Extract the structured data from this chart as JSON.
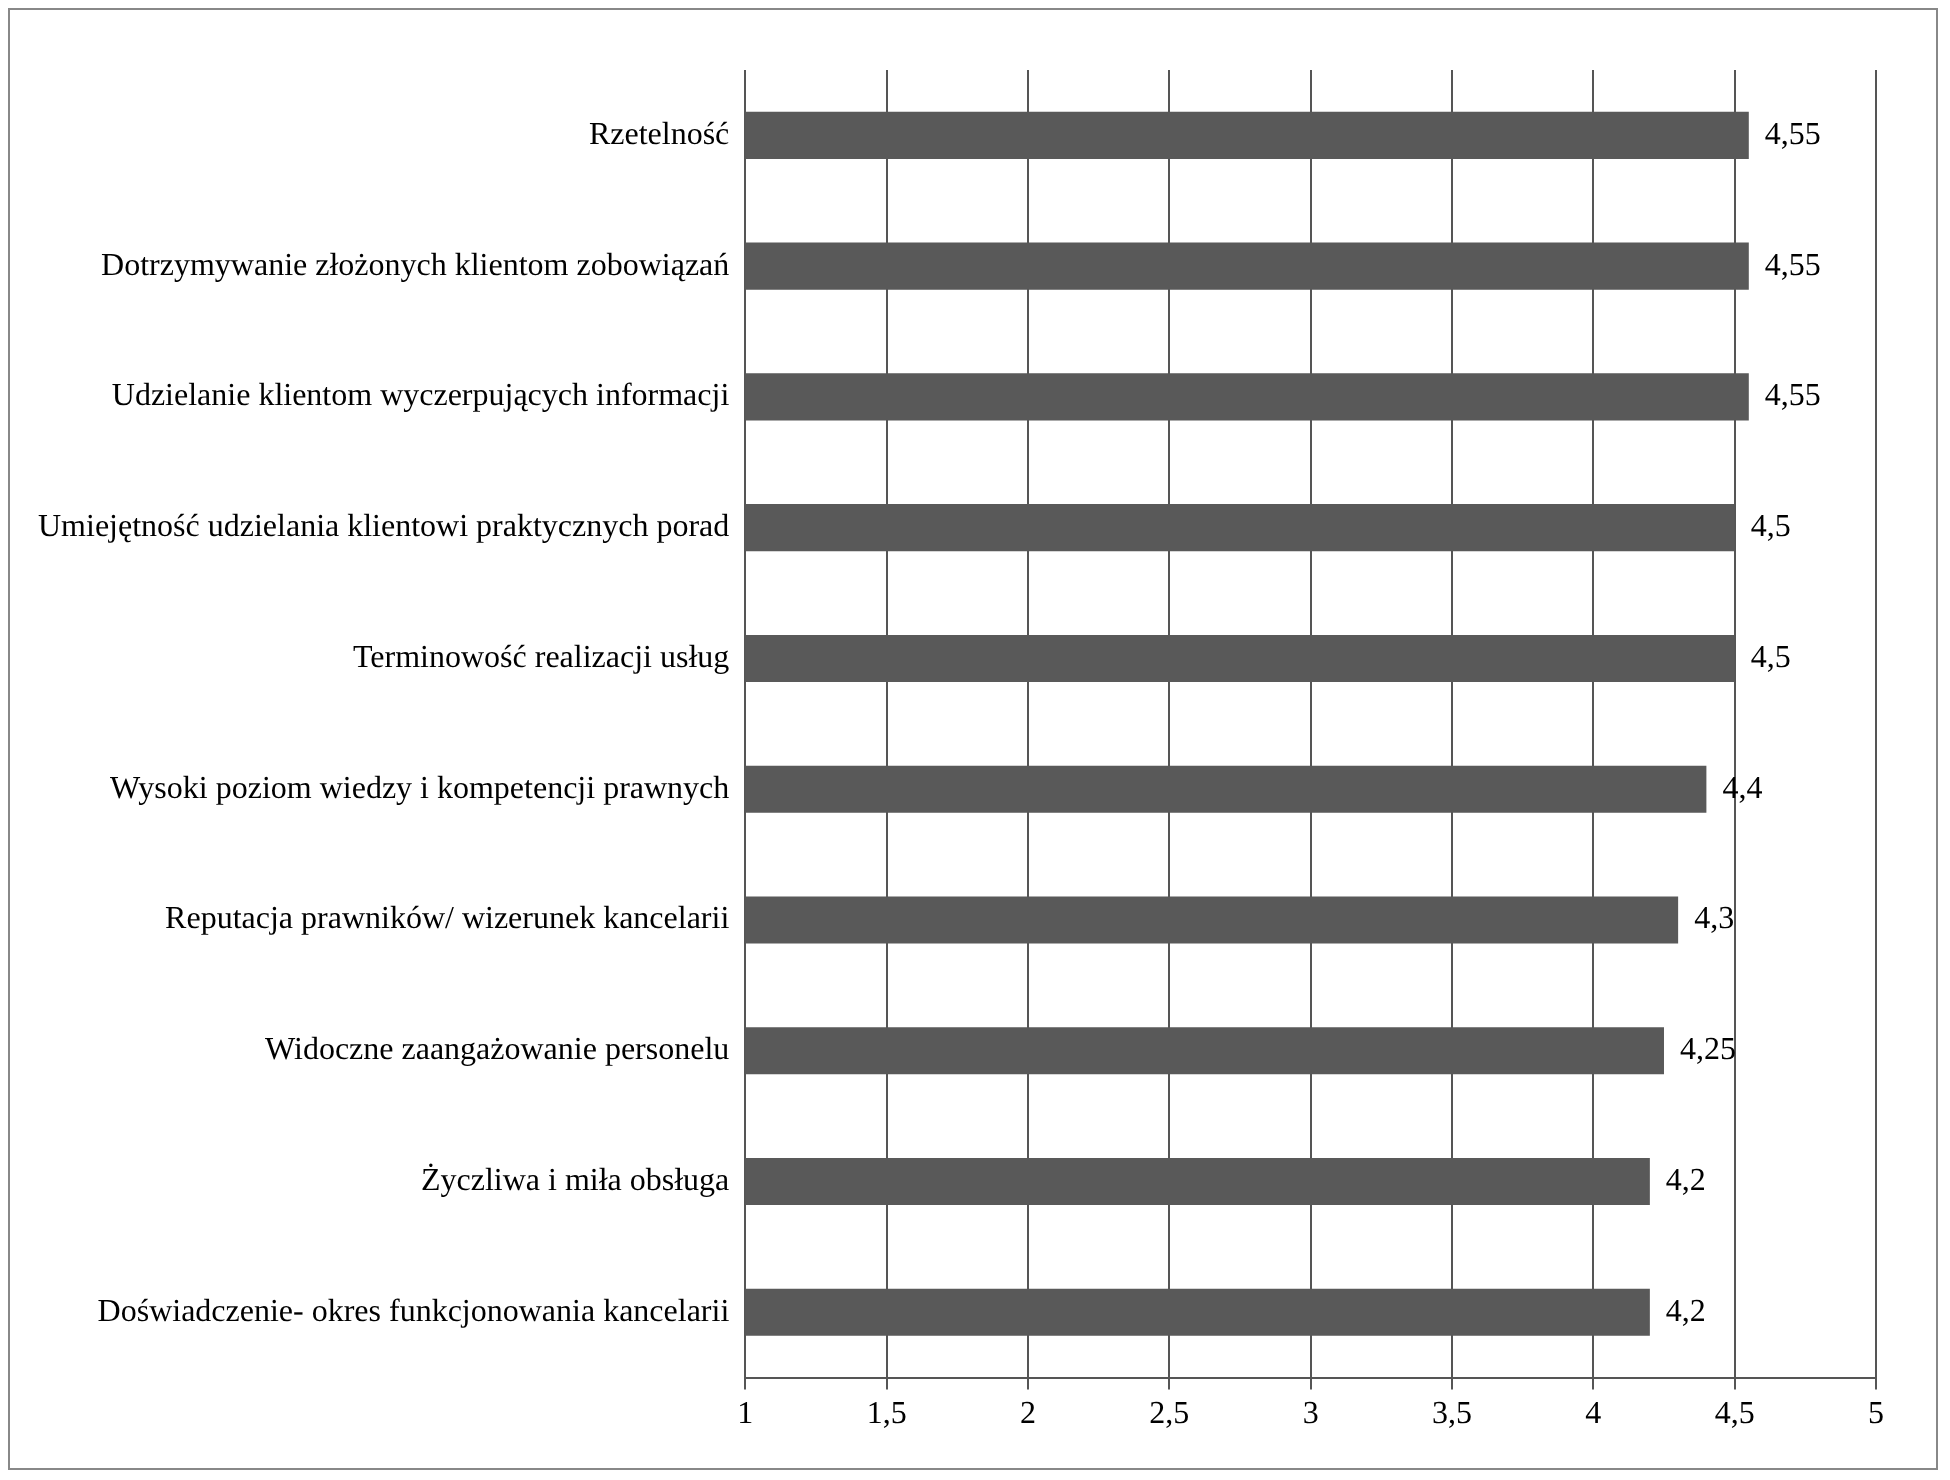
{
  "chart_data": {
    "type": "bar",
    "orientation": "horizontal",
    "categories": [
      "Rzetelność",
      "Dotrzymywanie złożonych klientom zobowiązań",
      "Udzielanie klientom wyczerpujących informacji",
      "Umiejętność udzielania klientowi praktycznych porad",
      "Terminowość realizacji usług",
      "Wysoki poziom wiedzy i kompetencji prawnych",
      "Reputacja prawników/ wizerunek kancelarii",
      "Widoczne zaangażowanie personelu",
      "Życzliwa i miła obsługa",
      "Doświadczenie- okres funkcjonowania kancelarii"
    ],
    "values": [
      4.55,
      4.55,
      4.55,
      4.5,
      4.5,
      4.4,
      4.3,
      4.25,
      4.2,
      4.2
    ],
    "value_labels": [
      "4,55",
      "4,55",
      "4,55",
      "4,5",
      "4,5",
      "4,4",
      "4,3",
      "4,25",
      "4,2",
      "4,2"
    ],
    "color": "#595959",
    "xlim": [
      1,
      5
    ],
    "xticks": [
      1,
      {
        "value": 1.5,
        "label": "1,5"
      },
      2,
      {
        "value": 2.5,
        "label": "2,5"
      },
      3,
      {
        "value": 3.5,
        "label": "3,5"
      },
      4,
      {
        "value": 4.5,
        "label": "4,5"
      },
      5
    ],
    "grid": "x",
    "legend": false
  }
}
